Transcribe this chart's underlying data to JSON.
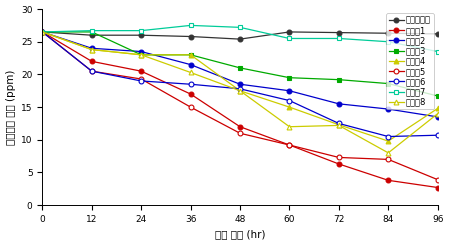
{
  "x": [
    0,
    12,
    24,
    36,
    48,
    60,
    72,
    84,
    96
  ],
  "series": [
    {
      "name": "음성대조군",
      "values": [
        26.5,
        26.0,
        26.0,
        25.8,
        25.4,
        26.5,
        26.4,
        26.3,
        26.2
      ],
      "color": "#333333",
      "marker": "o",
      "filled": true
    },
    {
      "name": "처리군1",
      "values": [
        26.5,
        22.0,
        20.5,
        17.0,
        12.0,
        9.2,
        6.3,
        3.8,
        2.7
      ],
      "color": "#cc0000",
      "marker": "o",
      "filled": true
    },
    {
      "name": "처리군2",
      "values": [
        26.5,
        24.0,
        23.5,
        21.5,
        18.5,
        17.5,
        15.5,
        14.7,
        13.5
      ],
      "color": "#0000cc",
      "marker": "o",
      "filled": true
    },
    {
      "name": "처리군3",
      "values": [
        26.5,
        26.5,
        23.0,
        23.0,
        21.0,
        19.5,
        19.2,
        18.6,
        16.7
      ],
      "color": "#00aa00",
      "marker": "s",
      "filled": true
    },
    {
      "name": "처리군4",
      "values": [
        26.5,
        23.8,
        23.0,
        23.0,
        17.5,
        15.0,
        12.3,
        9.8,
        14.8
      ],
      "color": "#cccc00",
      "marker": "^",
      "filled": true
    },
    {
      "name": "처리군5",
      "values": [
        26.5,
        20.5,
        19.3,
        15.0,
        11.0,
        9.2,
        7.3,
        7.0,
        3.9
      ],
      "color": "#cc0000",
      "marker": "o",
      "filled": false
    },
    {
      "name": "처리군6",
      "values": [
        26.5,
        20.5,
        19.0,
        18.5,
        17.8,
        16.0,
        12.5,
        10.5,
        10.7
      ],
      "color": "#0000cc",
      "marker": "o",
      "filled": false
    },
    {
      "name": "처리군7",
      "values": [
        26.5,
        26.7,
        26.7,
        27.5,
        27.2,
        25.5,
        25.5,
        25.0,
        23.5
      ],
      "color": "#00cc99",
      "marker": "s",
      "filled": false
    },
    {
      "name": "처리군8",
      "values": [
        26.5,
        23.8,
        23.0,
        20.3,
        17.5,
        12.0,
        12.2,
        8.0,
        14.0
      ],
      "color": "#cccc00",
      "marker": "^",
      "filled": false
    }
  ],
  "xlabel": "처리 기간 (hr)",
  "ylabel": "암모니아 농도 (ppm)",
  "xlim": [
    0,
    96
  ],
  "ylim": [
    0,
    30
  ],
  "xticks": [
    0,
    12,
    24,
    36,
    48,
    60,
    72,
    84,
    96
  ],
  "yticks": [
    0,
    5,
    10,
    15,
    20,
    25,
    30
  ],
  "legend_fontsize": 6.0,
  "axis_fontsize": 7.5,
  "tick_fontsize": 6.5
}
